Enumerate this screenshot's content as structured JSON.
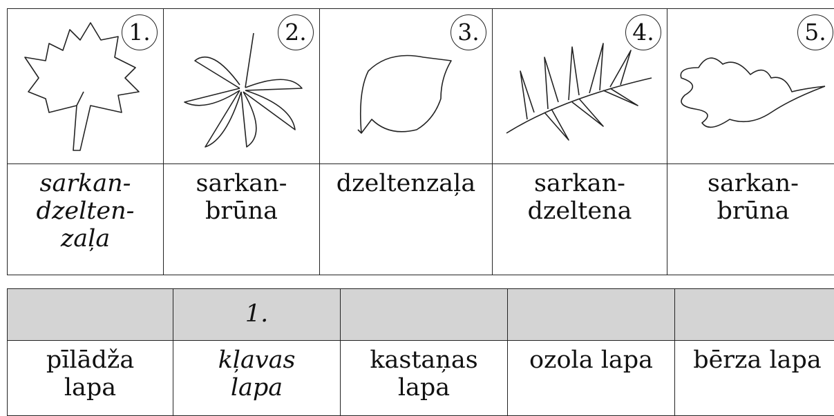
{
  "table1": {
    "numbers": [
      "1.",
      "2.",
      "3.",
      "4.",
      "5."
    ],
    "colors": [
      "sarkan-\ndzelten-\nzaļa",
      "sarkan-\nbrūna",
      "dzeltenzaļa",
      "sarkan-\ndzeltena",
      "sarkan-\nbrūna"
    ]
  },
  "table2": {
    "answers": [
      "1."
    ],
    "leaves": [
      "pīlādža\nlapa",
      "kļavas\nlapa",
      "kastaņas\nlapa",
      "ozola lapa",
      "bērza lapa"
    ]
  }
}
